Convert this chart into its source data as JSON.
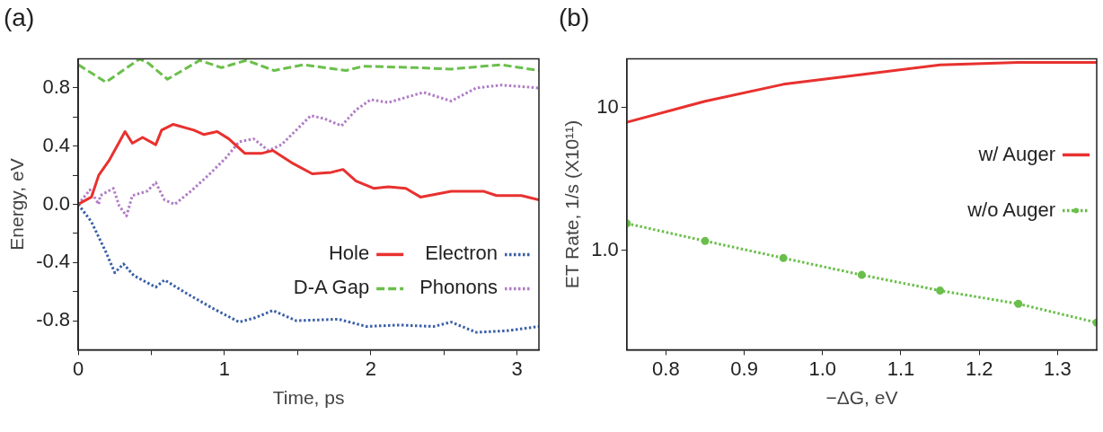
{
  "chart_data": [
    {
      "type": "line",
      "title": "(a)",
      "xlabel": "Time, ps",
      "ylabel": "Energy, eV",
      "xlim": [
        0,
        3.15
      ],
      "ylim": [
        -1.0,
        1.0
      ],
      "xticks": [
        0,
        {
          "value": 0.5,
          "label": null
        },
        1,
        {
          "value": 1.5,
          "label": null
        },
        2,
        {
          "value": 2.5,
          "label": null
        },
        3
      ],
      "yticks": [
        {
          "value": -0.8,
          "label": "-0.8"
        },
        {
          "value": -0.6,
          "label": null
        },
        {
          "value": -0.4,
          "label": "-0.4"
        },
        {
          "value": -0.2,
          "label": null
        },
        {
          "value": 0,
          "label": "0.0"
        },
        {
          "value": 0.2,
          "label": null
        },
        {
          "value": 0.4,
          "label": "0.4"
        },
        {
          "value": 0.6,
          "label": null
        },
        {
          "value": 0.8,
          "label": "0.8"
        }
      ],
      "legend": "bottom right",
      "marker": "none",
      "series": [
        {
          "name": "Hole",
          "color": "#e8312f",
          "line_style": "solid",
          "x": [
            0,
            0.09,
            0.14,
            0.21,
            0.32,
            0.37,
            0.44,
            0.53,
            0.57,
            0.65,
            0.79,
            0.86,
            0.95,
            1.03,
            1.14,
            1.25,
            1.33,
            1.47,
            1.6,
            1.73,
            1.81,
            1.9,
            2.02,
            2.12,
            2.24,
            2.34,
            2.55,
            2.77,
            2.86,
            3.03,
            3.15
          ],
          "values": [
            0,
            0.05,
            0.2,
            0.3,
            0.5,
            0.42,
            0.46,
            0.41,
            0.51,
            0.55,
            0.51,
            0.48,
            0.5,
            0.45,
            0.35,
            0.35,
            0.37,
            0.28,
            0.21,
            0.22,
            0.24,
            0.16,
            0.11,
            0.12,
            0.11,
            0.05,
            0.09,
            0.09,
            0.06,
            0.06,
            0.03
          ]
        },
        {
          "name": "Electron",
          "color": "#3a5fa8",
          "line_style": "dotted",
          "x": [
            0,
            0.09,
            0.19,
            0.25,
            0.31,
            0.38,
            0.53,
            0.59,
            0.72,
            0.91,
            1.1,
            1.21,
            1.33,
            1.49,
            1.78,
            1.97,
            2.19,
            2.43,
            2.55,
            2.72,
            2.93,
            3.15
          ],
          "values": [
            0,
            -0.12,
            -0.33,
            -0.47,
            -0.41,
            -0.49,
            -0.57,
            -0.52,
            -0.6,
            -0.71,
            -0.81,
            -0.78,
            -0.73,
            -0.8,
            -0.79,
            -0.84,
            -0.83,
            -0.84,
            -0.81,
            -0.88,
            -0.87,
            -0.84
          ]
        },
        {
          "name": "D-A Gap",
          "color": "#6abf4b",
          "line_style": "dashed",
          "x": [
            0,
            0.19,
            0.42,
            0.48,
            0.61,
            0.83,
            0.98,
            1.15,
            1.34,
            1.54,
            1.83,
            1.95,
            2.31,
            2.55,
            2.89,
            3.15
          ],
          "values": [
            0.96,
            0.84,
            1.0,
            0.97,
            0.86,
            0.99,
            0.94,
            0.99,
            0.92,
            0.96,
            0.92,
            0.95,
            0.94,
            0.93,
            0.96,
            0.92
          ]
        },
        {
          "name": "Phonons",
          "color": "#b07cc6",
          "line_style": "dotted",
          "x": [
            0,
            0.08,
            0.14,
            0.15,
            0.24,
            0.28,
            0.33,
            0.37,
            0.47,
            0.53,
            0.59,
            0.66,
            0.77,
            0.89,
            1.01,
            1.1,
            1.2,
            1.3,
            1.39,
            1.59,
            1.68,
            1.8,
            1.9,
            2.0,
            2.12,
            2.36,
            2.55,
            2.72,
            2.89,
            3.03,
            3.15
          ],
          "values": [
            0,
            0.1,
            0.0,
            0.06,
            0.11,
            -0.01,
            -0.08,
            0.06,
            0.09,
            0.15,
            0.03,
            0.0,
            0.09,
            0.2,
            0.32,
            0.43,
            0.45,
            0.37,
            0.41,
            0.61,
            0.59,
            0.54,
            0.65,
            0.72,
            0.7,
            0.77,
            0.71,
            0.8,
            0.82,
            0.81,
            0.8
          ]
        }
      ]
    },
    {
      "type": "line",
      "title": "(b)",
      "xlabel": "−ΔG, eV",
      "ylabel": "ET Rate, 1/s (X10¹¹)",
      "log": "y",
      "xlim": [
        0.75,
        1.35
      ],
      "ylim": [
        0.2,
        22
      ],
      "xticks": [
        {
          "value": 0.8,
          "label": "0.8"
        },
        {
          "value": 0.9,
          "label": "0.9"
        },
        {
          "value": 1.0,
          "label": "1.0"
        },
        {
          "value": 1.1,
          "label": "1.1"
        },
        {
          "value": 1.2,
          "label": "1.2"
        },
        {
          "value": 1.3,
          "label": "1.3"
        }
      ],
      "yticks": [
        {
          "value": 1,
          "label": "1.0"
        },
        10
      ],
      "legend": "right",
      "series": [
        {
          "name": "w/ Auger",
          "color": "#e8312f",
          "line_style": "solid",
          "marker": "none",
          "x": [
            0.75,
            0.85,
            0.95,
            1.05,
            1.15,
            1.25,
            1.35
          ],
          "values": [
            7.9,
            11.1,
            14.6,
            17.1,
            20,
            20.8,
            20.8
          ]
        },
        {
          "name": "w/o Auger",
          "color": "#6abf4b",
          "line_style": "dotted",
          "marker": "circle",
          "x": [
            0.75,
            0.85,
            0.95,
            1.05,
            1.15,
            1.25,
            1.35
          ],
          "values": [
            1.54,
            1.16,
            0.88,
            0.67,
            0.52,
            0.42,
            0.31
          ]
        }
      ]
    }
  ]
}
